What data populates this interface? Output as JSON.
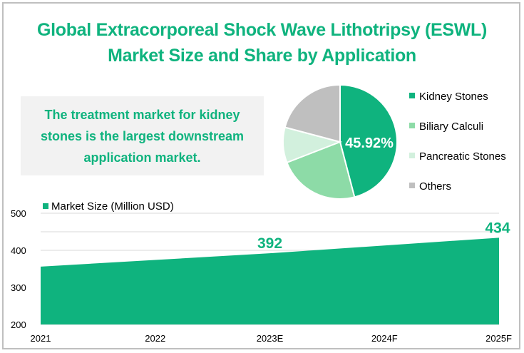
{
  "title": {
    "line1": "Global Extracorporeal Shock Wave Lithotripsy (ESWL)",
    "line2": "Market Size and Share by Application"
  },
  "callout": "The treatment market for kidney stones is the largest downstream application market.",
  "colors": {
    "accent": "#0fb37e",
    "kidney": "#0fb37e",
    "biliary": "#8ddba7",
    "pancreatic": "#d2f0dd",
    "others": "#bfbfbf",
    "grid": "#d9d9d9",
    "axis_text": "#000000"
  },
  "chart_data": [
    {
      "type": "pie",
      "title": "",
      "legend_position": "right",
      "categories": [
        "Kidney Stones",
        "Biliary Calculi",
        "Pancreatic Stones",
        "Others"
      ],
      "values": [
        45.92,
        23.2,
        10.0,
        20.88
      ],
      "data_labels": [
        "45.92%",
        "",
        "",
        ""
      ]
    },
    {
      "type": "area",
      "title": "",
      "legend_position": "top-left",
      "series": [
        {
          "name": "Market Size (Million USD)",
          "values": [
            356,
            374,
            392,
            413,
            434
          ]
        }
      ],
      "categories": [
        "2021",
        "2022",
        "2023E",
        "2024F",
        "2025F"
      ],
      "data_labels": [
        "",
        "",
        "392",
        "",
        "434"
      ],
      "ylim": [
        200,
        500
      ],
      "yticks": [
        "500",
        "400",
        "300",
        "200"
      ],
      "ytick_values": [
        500,
        400,
        300,
        200
      ],
      "gridlines": [
        200,
        250,
        300,
        350,
        400,
        450,
        500
      ],
      "grid": true,
      "xlabel": "",
      "ylabel": ""
    }
  ]
}
